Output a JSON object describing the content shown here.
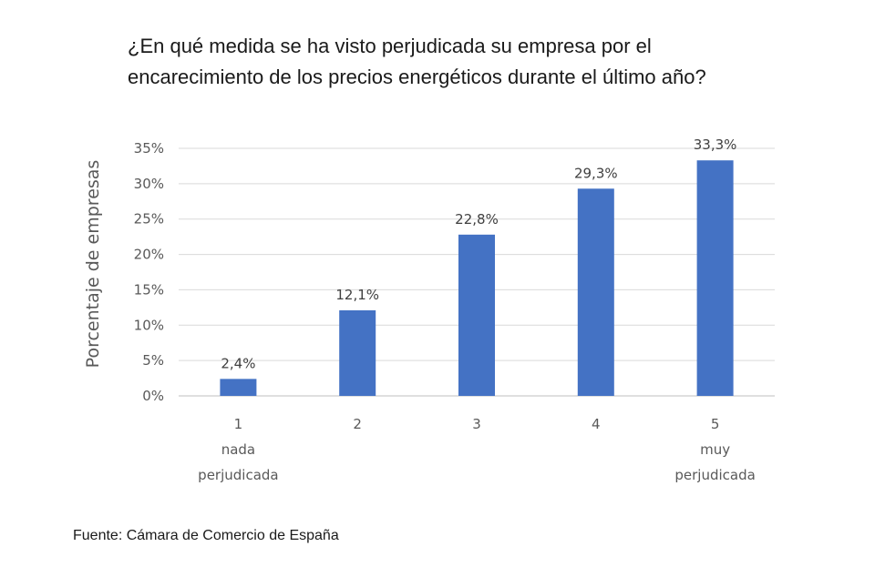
{
  "chart_data": {
    "type": "bar",
    "title_lines": [
      "¿En qué medida se ha visto perjudicada su empresa por el",
      "encarecimiento de los precios energéticos durante el último año?"
    ],
    "ylabel": "Porcentaje de empresas",
    "ylim": [
      0,
      35
    ],
    "yticks": [
      "0%",
      "5%",
      "10%",
      "15%",
      "20%",
      "25%",
      "30%",
      "35%"
    ],
    "grid": true,
    "categories": [
      "1",
      "2",
      "3",
      "4",
      "5"
    ],
    "category_sublabels": [
      [
        "nada",
        "perjudicada"
      ],
      [],
      [],
      [],
      [
        "muy",
        "perjudicada"
      ]
    ],
    "values": [
      2.4,
      12.1,
      22.8,
      29.3,
      33.3
    ],
    "data_labels": [
      "2,4%",
      "12,1%",
      "22,8%",
      "29,3%",
      "33,3%"
    ],
    "bar_color": "#4472C4"
  },
  "source": "Fuente: Cámara de Comercio de España"
}
